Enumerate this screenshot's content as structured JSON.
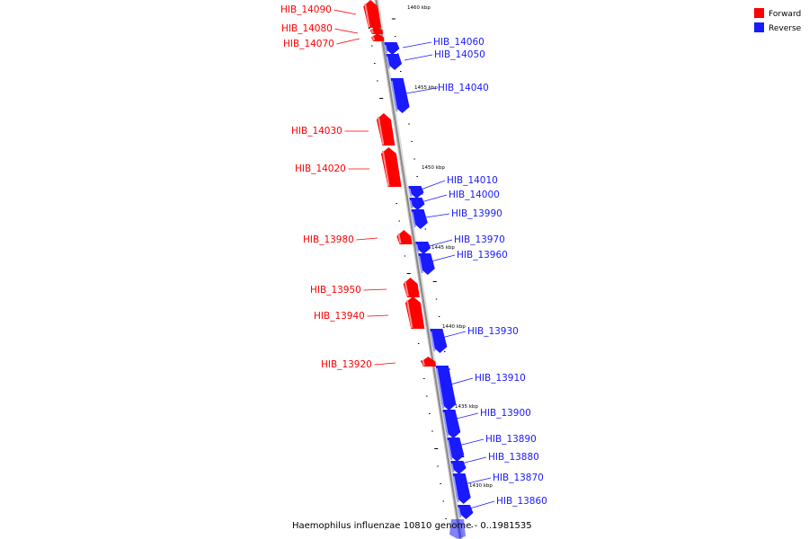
{
  "colors": {
    "forward": "#ff0000",
    "reverse": "#1a1aff",
    "axis": "#8a8a8a"
  },
  "legend": [
    {
      "label": "Forward",
      "color": "#ff0000"
    },
    {
      "label": "Reverse",
      "color": "#1a1aff"
    }
  ],
  "caption": "Haemophilus influenzae 10810 genome - 0..1981535",
  "axis_ticks_kbp": [
    {
      "label": "1460 kbp",
      "value": 1460
    },
    {
      "label": "1455 kbp",
      "value": 1455
    },
    {
      "label": "1450 kbp",
      "value": 1450
    },
    {
      "label": "1445 kbp",
      "value": 1445
    },
    {
      "label": "1440 kbp",
      "value": 1440
    },
    {
      "label": "1435 kbp",
      "value": 1435
    },
    {
      "label": "1430 kbp",
      "value": 1430
    }
  ],
  "genes": [
    {
      "name": "HIB_14090",
      "strand": "forward"
    },
    {
      "name": "HIB_14080",
      "strand": "forward"
    },
    {
      "name": "HIB_14070",
      "strand": "forward"
    },
    {
      "name": "HIB_14060",
      "strand": "reverse"
    },
    {
      "name": "HIB_14050",
      "strand": "reverse"
    },
    {
      "name": "HIB_14040",
      "strand": "reverse"
    },
    {
      "name": "HIB_14030",
      "strand": "forward"
    },
    {
      "name": "HIB_14020",
      "strand": "forward"
    },
    {
      "name": "HIB_14010",
      "strand": "reverse"
    },
    {
      "name": "HIB_14000",
      "strand": "reverse"
    },
    {
      "name": "HIB_13990",
      "strand": "reverse"
    },
    {
      "name": "HIB_13980",
      "strand": "forward"
    },
    {
      "name": "HIB_13970",
      "strand": "reverse"
    },
    {
      "name": "HIB_13960",
      "strand": "reverse"
    },
    {
      "name": "HIB_13950",
      "strand": "forward"
    },
    {
      "name": "HIB_13940",
      "strand": "forward"
    },
    {
      "name": "HIB_13930",
      "strand": "reverse"
    },
    {
      "name": "HIB_13920",
      "strand": "forward"
    },
    {
      "name": "HIB_13910",
      "strand": "reverse"
    },
    {
      "name": "HIB_13900",
      "strand": "reverse"
    },
    {
      "name": "HIB_13890",
      "strand": "reverse"
    },
    {
      "name": "HIB_13880",
      "strand": "reverse"
    },
    {
      "name": "HIB_13870",
      "strand": "reverse"
    },
    {
      "name": "HIB_13860",
      "strand": "reverse"
    }
  ]
}
